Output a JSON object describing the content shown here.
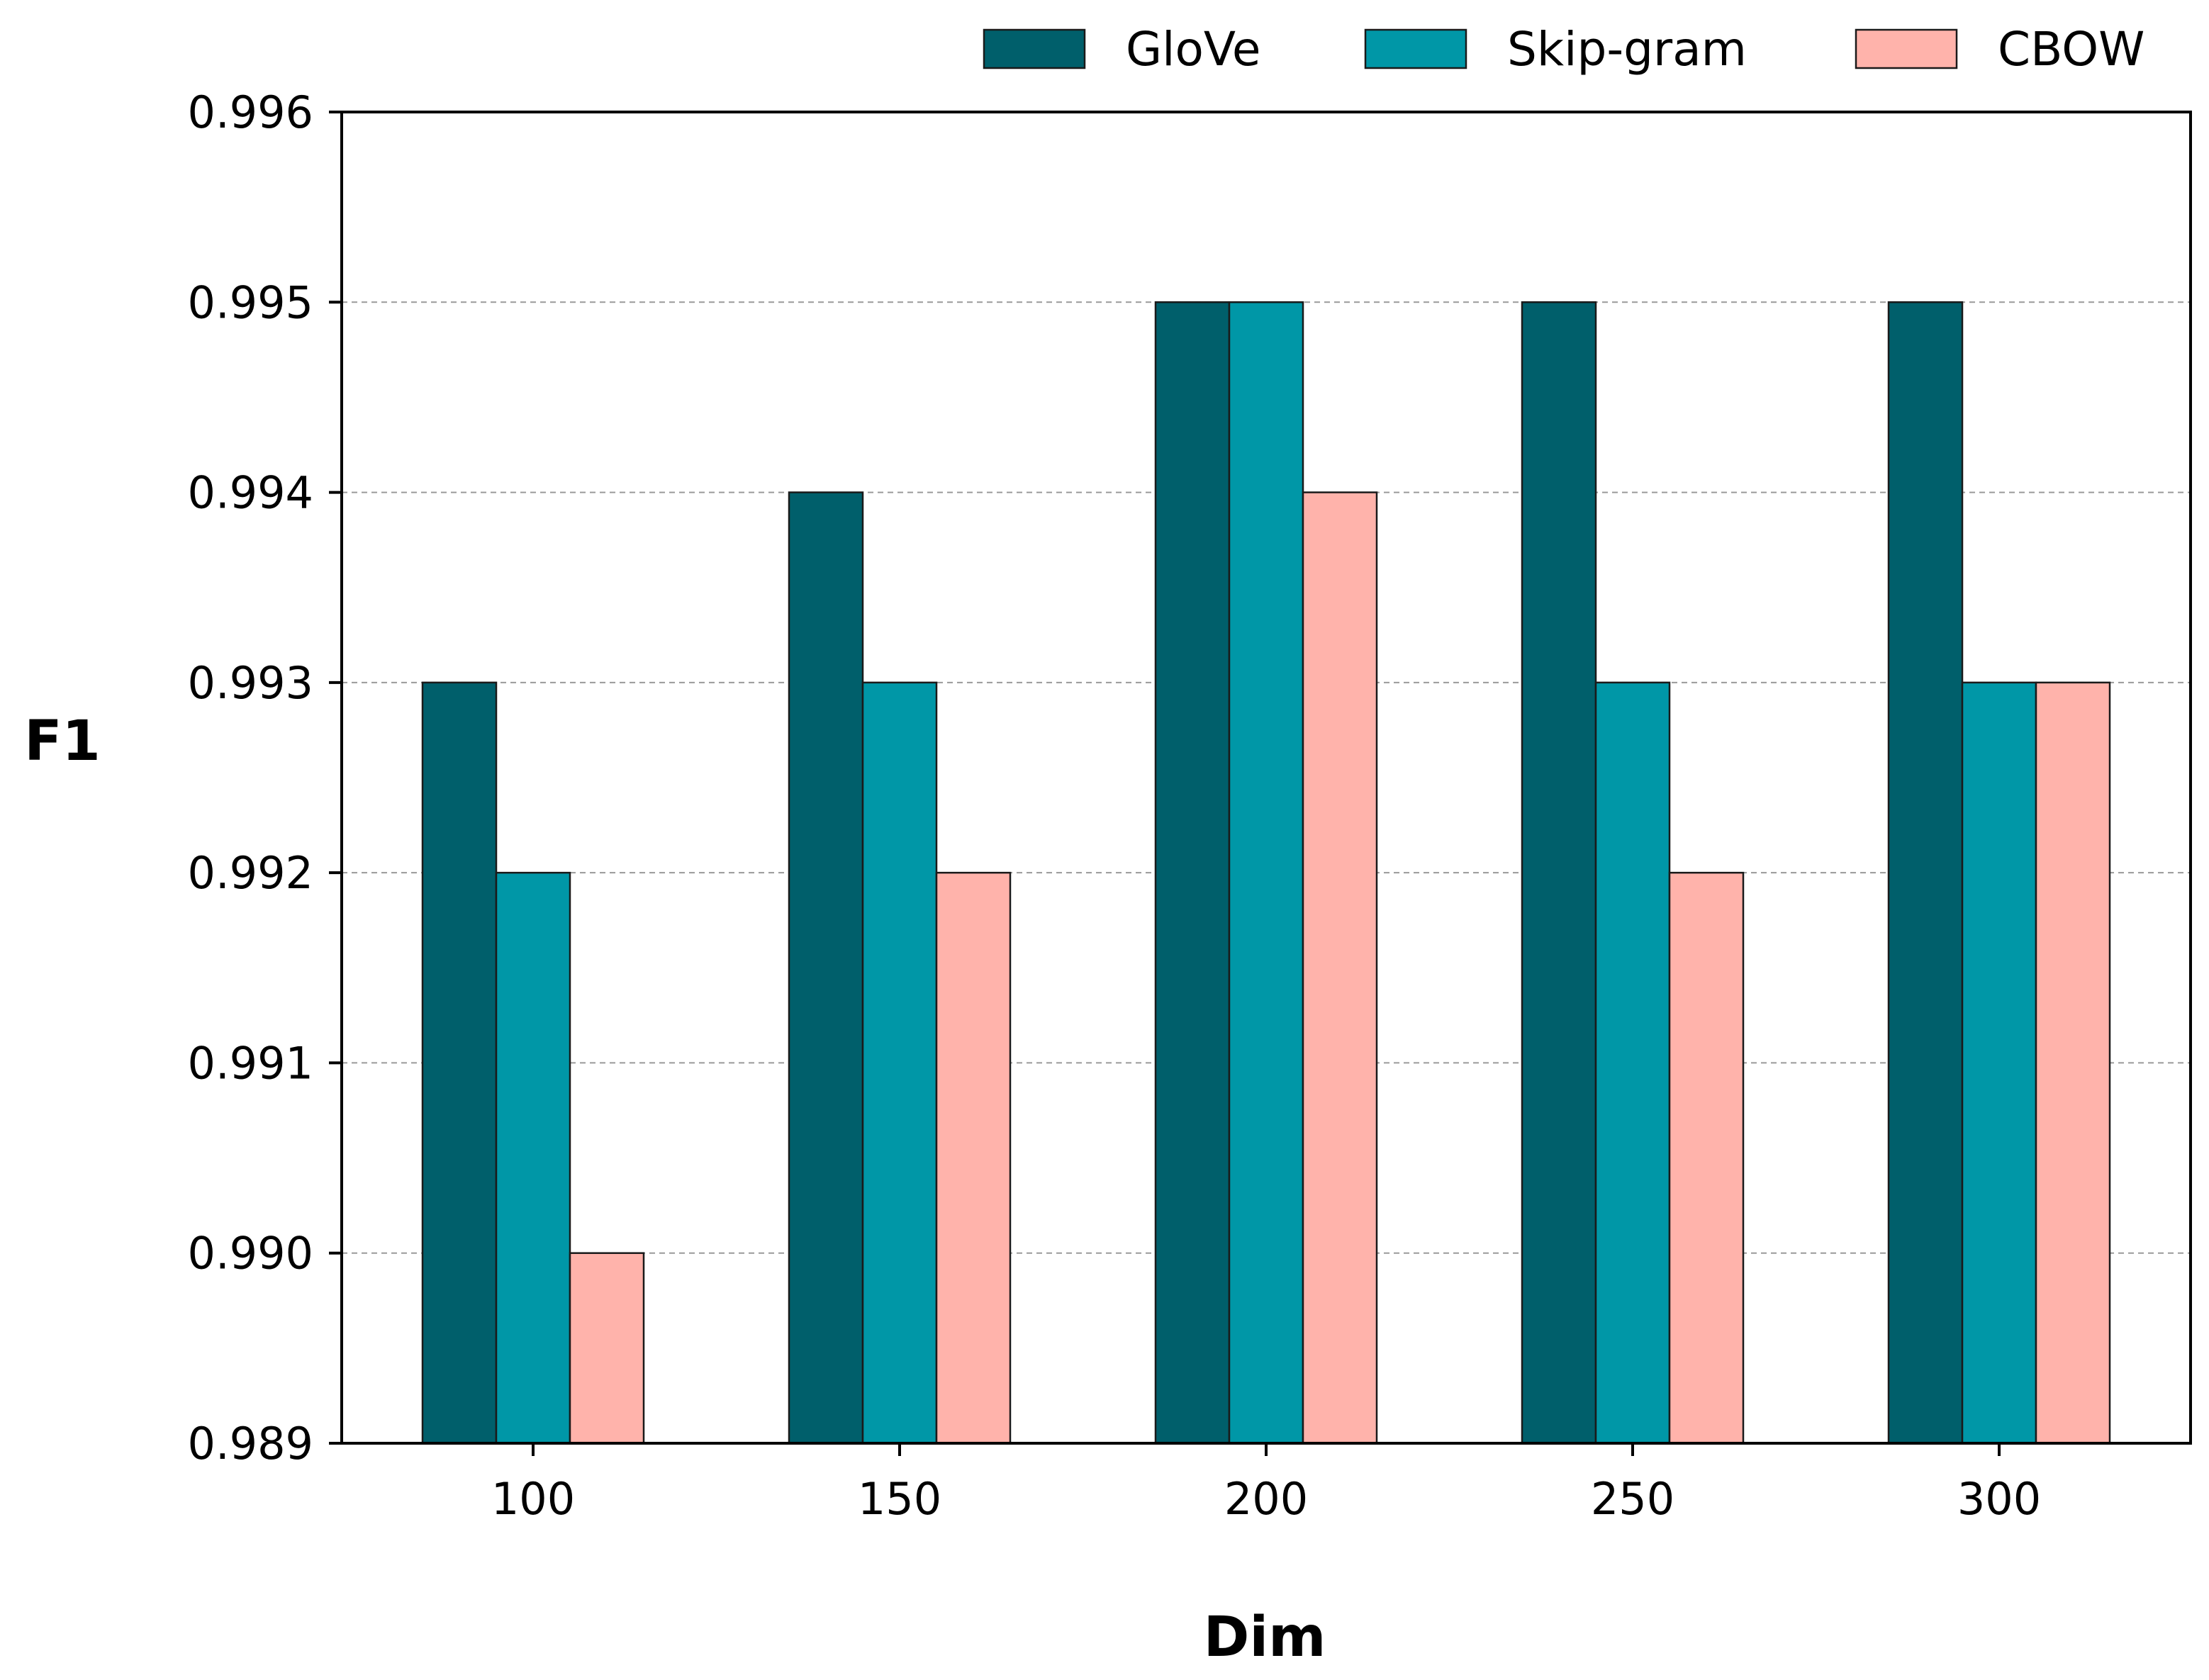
{
  "chart_data": {
    "type": "bar",
    "title": "",
    "xlabel": "Dim",
    "ylabel": "F1",
    "categories": [
      "100",
      "150",
      "200",
      "250",
      "300"
    ],
    "series": [
      {
        "name": "GloVe",
        "color": "#005f6b",
        "values": [
          0.993,
          0.994,
          0.995,
          0.995,
          0.995
        ]
      },
      {
        "name": "Skip-gram",
        "color": "#0097a7",
        "values": [
          0.992,
          0.993,
          0.995,
          0.993,
          0.993
        ]
      },
      {
        "name": "CBOW",
        "color": "#ffb3ab",
        "values": [
          0.99,
          0.992,
          0.994,
          0.992,
          0.993
        ]
      }
    ],
    "ylim": [
      0.989,
      0.996
    ],
    "yticks": [
      "0.989",
      "0.990",
      "0.991",
      "0.992",
      "0.993",
      "0.994",
      "0.995",
      "0.996"
    ],
    "grid": "horizontal-dashed",
    "legend_position": "top, above plot"
  }
}
